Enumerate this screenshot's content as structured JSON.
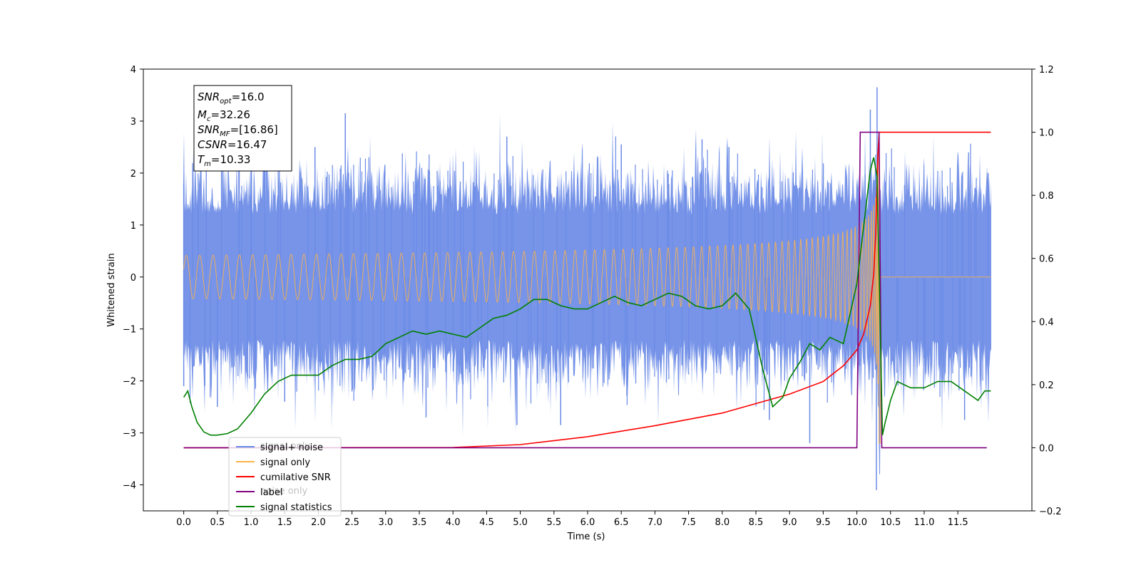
{
  "chart_data": {
    "type": "line",
    "title": "",
    "xlabel": "Time (s)",
    "ylabel": "Whitened strain",
    "xlim": [
      -0.6,
      12.6
    ],
    "ylim": [
      -4.5,
      4.0
    ],
    "y2lim": [
      -0.2,
      1.2
    ],
    "x_ticks": [
      "0.0",
      "0.5",
      "1.0",
      "1.5",
      "2.0",
      "2.5",
      "3.0",
      "3.5",
      "4.0",
      "4.5",
      "5.0",
      "5.5",
      "6.0",
      "6.5",
      "7.0",
      "7.5",
      "8.0",
      "8.5",
      "9.0",
      "9.5",
      "10.0",
      "10.5",
      "11.0",
      "11.5"
    ],
    "y_ticks": [
      4,
      3,
      2,
      1,
      0,
      -1,
      -2,
      -3,
      -4
    ],
    "y2_ticks": [
      "1.2",
      "1.0",
      "0.8",
      "0.6",
      "0.4",
      "0.2",
      "0.0",
      "−0.2"
    ],
    "grid": false,
    "legend_position": "lower-left",
    "legend": [
      "signal+ noise",
      "signal only",
      "cumilative SNR",
      "label",
      "signal statistics"
    ],
    "legend_overlap_text": [
      "signal only",
      "noise only"
    ],
    "annotation": {
      "snr_opt": "SNRopt=16.0",
      "snr_opt_base": "SNR",
      "snr_opt_sub": "opt",
      "snr_opt_val": "=16.0",
      "mc_base": "M",
      "mc_sub": "c",
      "mc_val": "=32.26",
      "snr_mf_base": "SNR",
      "snr_mf_sub": "MF",
      "snr_mf_val": "=[16.86]",
      "csnr_base": "CSNR",
      "csnr_val": "=16.47",
      "tm_base": "T",
      "tm_sub": "m",
      "tm_val": "=10.33"
    },
    "series": [
      {
        "name": "signal+ noise",
        "axis": "left",
        "color": "#6b8be6",
        "t_start": 0.0,
        "t_end": 11.99,
        "noise_envelope": 1.6,
        "noise_peaks": [
          {
            "x": 0.0,
            "y": 1.8
          },
          {
            "x": 0.0,
            "y": -2.1
          },
          {
            "x": 0.5,
            "y": -2.5
          },
          {
            "x": 1.0,
            "y": 2.6
          },
          {
            "x": 1.5,
            "y": -2.4
          },
          {
            "x": 1.95,
            "y": 2.5
          },
          {
            "x": 2.4,
            "y": 3.15
          },
          {
            "x": 2.5,
            "y": -2.2
          },
          {
            "x": 3.6,
            "y": -2.7
          },
          {
            "x": 4.8,
            "y": 2.7
          },
          {
            "x": 4.95,
            "y": -2.85
          },
          {
            "x": 5.6,
            "y": -2.85
          },
          {
            "x": 6.5,
            "y": 2.55
          },
          {
            "x": 7.7,
            "y": 2.65
          },
          {
            "x": 8.1,
            "y": 2.5
          },
          {
            "x": 8.7,
            "y": -2.75
          },
          {
            "x": 9.3,
            "y": -3.2
          },
          {
            "x": 10.2,
            "y": 3.22
          },
          {
            "x": 10.3,
            "y": 3.65
          },
          {
            "x": 10.29,
            "y": -4.1
          },
          {
            "x": 11.6,
            "y": -2.75
          },
          {
            "x": 11.95,
            "y": 2.0
          }
        ]
      },
      {
        "name": "signal only",
        "axis": "left",
        "color": "#ffb347",
        "t_start": 0.0,
        "t_end": 11.99,
        "merger_time": 10.33,
        "peak_amplitude": 3.2
      },
      {
        "name": "cumilative SNR",
        "axis": "right",
        "color": "#ff0000",
        "x": [
          0.0,
          4.0,
          5.0,
          6.0,
          7.0,
          8.0,
          9.0,
          9.5,
          9.8,
          10.0,
          10.1,
          10.2,
          10.25,
          10.28,
          10.3,
          10.31,
          10.33,
          11.99
        ],
        "y": [
          0.0,
          0.001,
          0.01,
          0.035,
          0.07,
          0.11,
          0.17,
          0.21,
          0.26,
          0.31,
          0.36,
          0.45,
          0.55,
          0.68,
          0.84,
          0.92,
          1.0,
          1.0
        ]
      },
      {
        "name": "label",
        "axis": "right",
        "color": "#800080",
        "x": [
          0.0,
          10.0,
          10.05,
          10.33,
          10.37,
          11.93
        ],
        "y": [
          0.0,
          0.0,
          1.0,
          1.0,
          0.0,
          0.0
        ]
      },
      {
        "name": "signal statistics",
        "axis": "right",
        "color": "#008000",
        "x": [
          0.0,
          0.06,
          0.12,
          0.2,
          0.3,
          0.4,
          0.5,
          0.65,
          0.8,
          1.0,
          1.2,
          1.4,
          1.6,
          1.8,
          2.0,
          2.2,
          2.4,
          2.6,
          2.8,
          3.0,
          3.2,
          3.4,
          3.6,
          3.8,
          4.0,
          4.2,
          4.4,
          4.6,
          4.8,
          5.0,
          5.2,
          5.4,
          5.6,
          5.8,
          6.0,
          6.2,
          6.4,
          6.6,
          6.8,
          7.0,
          7.2,
          7.4,
          7.6,
          7.8,
          8.0,
          8.2,
          8.4,
          8.6,
          8.75,
          8.9,
          9.0,
          9.15,
          9.3,
          9.45,
          9.6,
          9.8,
          10.0,
          10.1,
          10.2,
          10.25,
          10.3,
          10.34,
          10.38,
          10.42,
          10.5,
          10.6,
          10.7,
          10.8,
          10.9,
          11.0,
          11.2,
          11.4,
          11.6,
          11.8,
          11.9,
          11.99
        ],
        "y": [
          0.16,
          0.18,
          0.13,
          0.08,
          0.05,
          0.04,
          0.04,
          0.045,
          0.06,
          0.11,
          0.17,
          0.21,
          0.23,
          0.23,
          0.23,
          0.26,
          0.28,
          0.28,
          0.29,
          0.33,
          0.35,
          0.37,
          0.36,
          0.37,
          0.36,
          0.35,
          0.38,
          0.41,
          0.42,
          0.44,
          0.47,
          0.47,
          0.45,
          0.44,
          0.44,
          0.46,
          0.48,
          0.46,
          0.45,
          0.47,
          0.49,
          0.48,
          0.45,
          0.44,
          0.45,
          0.49,
          0.44,
          0.25,
          0.13,
          0.16,
          0.22,
          0.27,
          0.33,
          0.31,
          0.35,
          0.33,
          0.52,
          0.7,
          0.88,
          0.92,
          0.86,
          0.45,
          0.04,
          0.08,
          0.15,
          0.21,
          0.2,
          0.19,
          0.19,
          0.19,
          0.21,
          0.21,
          0.18,
          0.15,
          0.18,
          0.18
        ]
      }
    ]
  }
}
